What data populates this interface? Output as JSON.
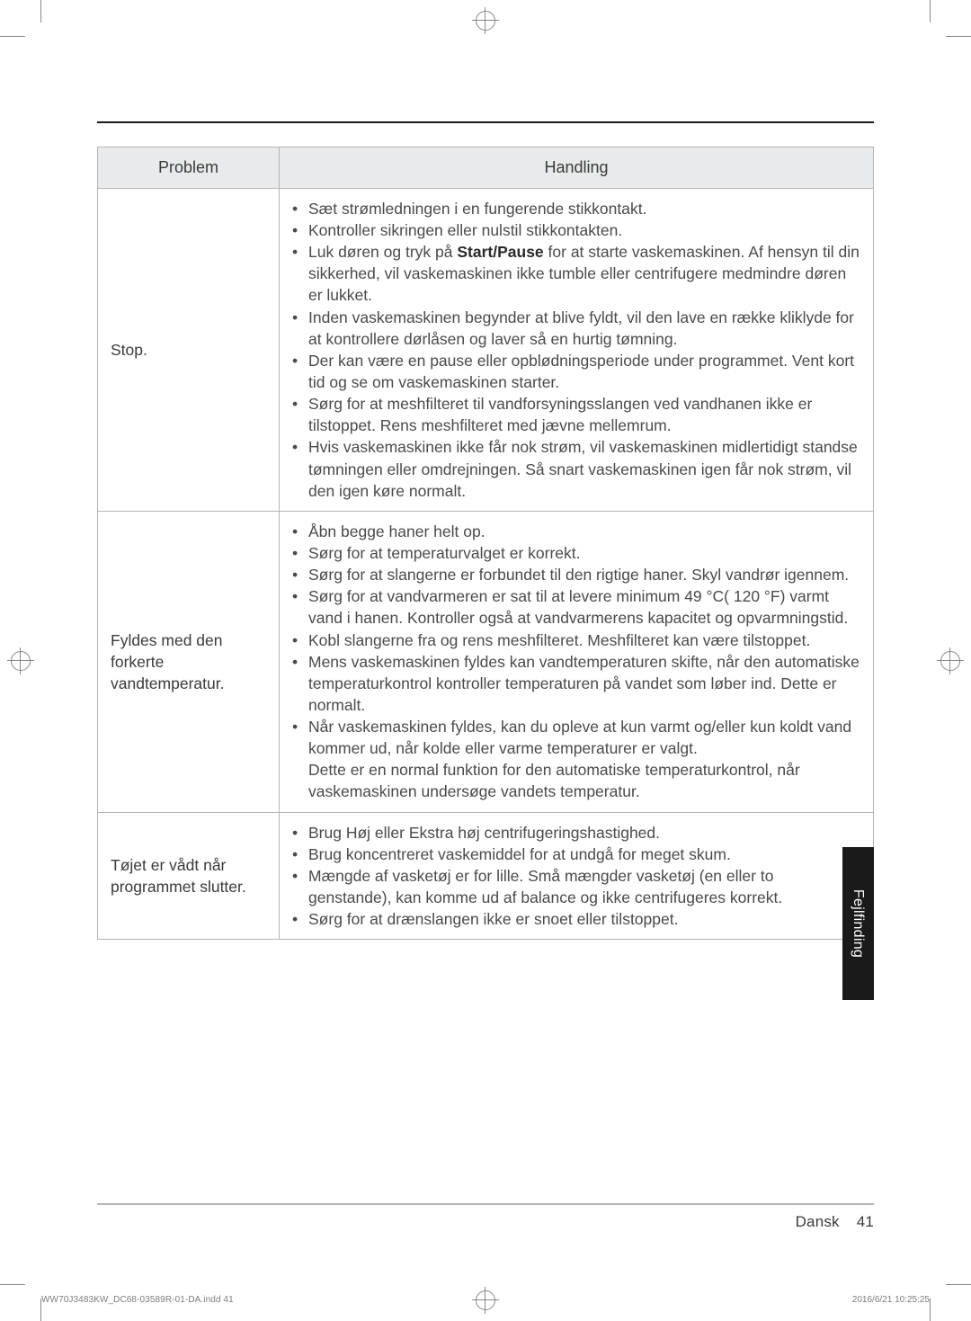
{
  "table": {
    "headers": {
      "problem": "Problem",
      "action": "Handling"
    },
    "rows": [
      {
        "problem": "Stop.",
        "items": [
          "Sæt strømledningen i en fungerende stikkontakt.",
          "Kontroller sikringen eller nulstil stikkontakten.",
          {
            "pre": "Luk døren og tryk på ",
            "strong": "Start/Pause",
            "post": " for at starte vaskemaskinen. Af hensyn til din sikkerhed, vil vaskemaskinen ikke tumble eller centrifugere medmindre døren er lukket."
          },
          "Inden vaskemaskinen begynder at blive fyldt, vil den lave en række kliklyde for at kontrollere dørlåsen og laver så en hurtig tømning.",
          "Der kan være en pause eller opblødningsperiode under programmet. Vent kort tid og se om vaskemaskinen starter.",
          "Sørg for at meshfilteret til vandforsyningsslangen ved vandhanen ikke er tilstoppet. Rens meshfilteret med jævne mellemrum.",
          "Hvis vaskemaskinen ikke får nok strøm, vil vaskemaskinen midlertidigt standse tømningen eller omdrejningen. Så snart vaskemaskinen igen får nok strøm, vil den igen køre normalt."
        ]
      },
      {
        "problem": "Fyldes med den forkerte vandtemperatur.",
        "items": [
          "Åbn begge haner helt op.",
          "Sørg for at temperaturvalget er korrekt.",
          "Sørg for at slangerne er forbundet til den rigtige haner. Skyl vandrør igennem.",
          "Sørg for at vandvarmeren er sat til at levere minimum 49 °C( 120 °F) varmt vand i hanen. Kontroller også at vandvarmerens kapacitet og opvarmningstid.",
          "Kobl slangerne fra og rens meshfilteret. Meshfilteret kan være tilstoppet.",
          "Mens vaskemaskinen fyldes kan vandtemperaturen skifte, når den automatiske temperaturkontrol kontroller temperaturen på vandet som løber ind. Dette er normalt.",
          "Når vaskemaskinen fyldes, kan du opleve at kun varmt og/eller kun koldt vand kommer ud, når kolde eller varme temperaturer er valgt.\nDette er en normal funktion for den automatiske temperaturkontrol, når vaskemaskinen undersøge vandets temperatur."
        ]
      },
      {
        "problem": "Tøjet er vådt når programmet slutter.",
        "items": [
          "Brug Høj eller Ekstra høj centrifugeringshastighed.",
          "Brug koncentreret vaskemiddel for at undgå for meget skum.",
          "Mængde af vasketøj er for lille. Små mængder vasketøj (en eller to genstande), kan komme ud af balance og ikke centrifugeres korrekt.",
          "Sørg for at drænslangen ikke er snoet eller tilstoppet."
        ]
      }
    ]
  },
  "sideTab": "Fejlfinding",
  "footer": {
    "lang": "Dansk",
    "page": "41"
  },
  "indd": "WW70J3483KW_DC68-03589R-01-DA.indd   41",
  "timestamp": "2016/6/21   10:25:25"
}
